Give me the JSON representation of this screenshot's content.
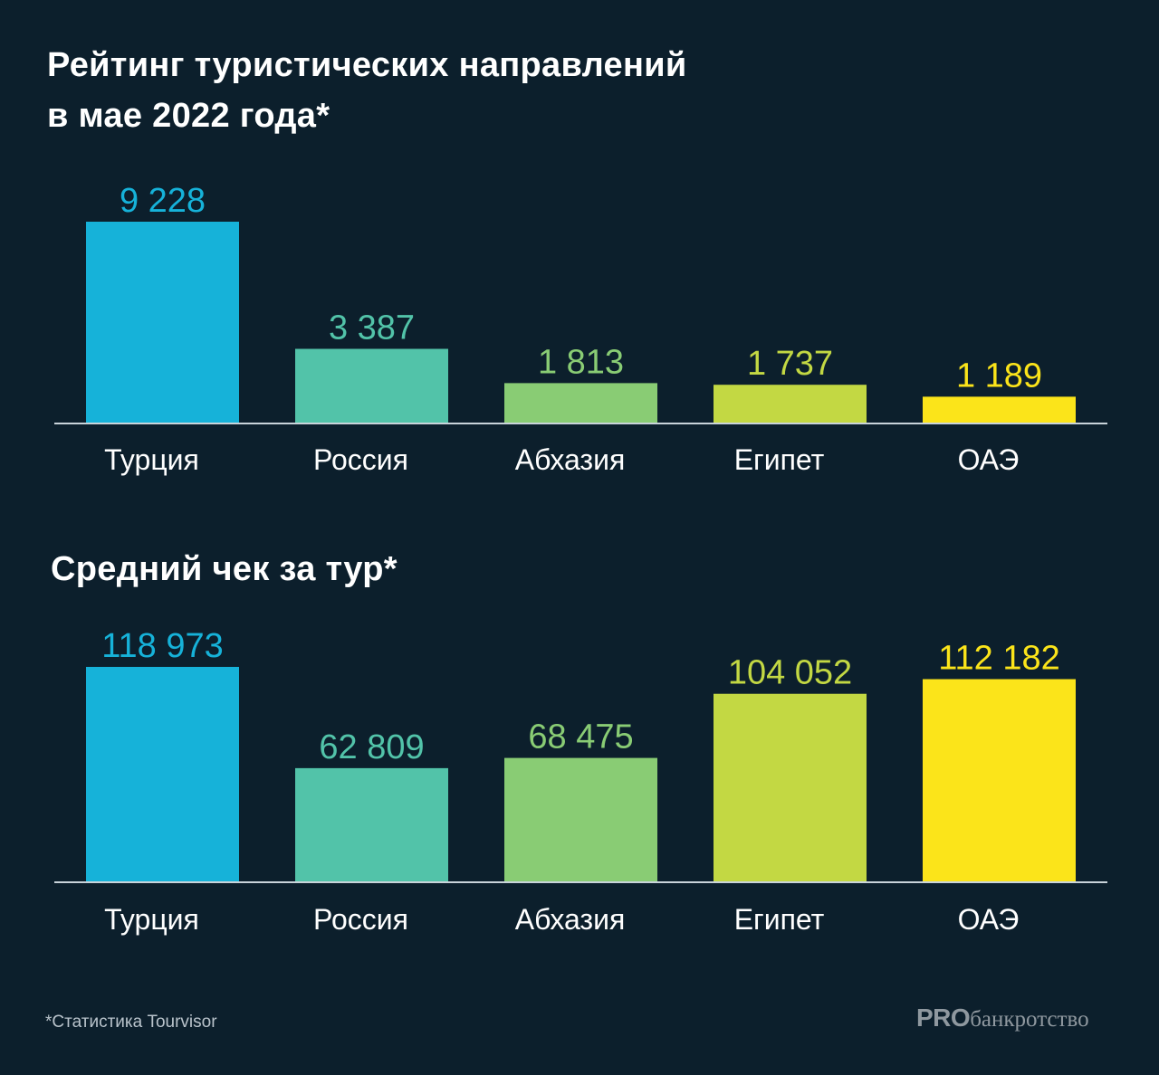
{
  "colors": {
    "background": "#0c1f2c",
    "axis": "#c9d3da",
    "series": [
      "#16b2d9",
      "#52c3a9",
      "#89cc74",
      "#c3d843",
      "#fbe41a"
    ]
  },
  "chart_data": [
    {
      "type": "bar",
      "title_lines": [
        "Рейтинг туристических направлений",
        "в мае 2022 года*"
      ],
      "categories": [
        "Турция",
        "Россия",
        "Абхазия",
        "Египет",
        "ОАЭ"
      ],
      "values": [
        9228,
        3387,
        1813,
        1737,
        1189
      ],
      "value_labels": [
        "9 228",
        "3 387",
        "1 813",
        "1 737",
        "1 189"
      ],
      "xlabel": "",
      "ylabel": "",
      "ylim": [
        0,
        9228
      ],
      "grid": false,
      "legend": "none"
    },
    {
      "type": "bar",
      "title_lines": [
        "Средний чек за тур*"
      ],
      "categories": [
        "Турция",
        "Россия",
        "Абхазия",
        "Египет",
        "ОАЭ"
      ],
      "values": [
        118973,
        62809,
        68475,
        104052,
        112182
      ],
      "value_labels": [
        "118 973",
        "62 809",
        "68 475",
        "104 052",
        "112 182"
      ],
      "xlabel": "",
      "ylabel": "",
      "ylim": [
        0,
        118973
      ],
      "grid": false,
      "legend": "none"
    }
  ],
  "footnote": "*Статистика Tourvisor",
  "logo": {
    "pro": "PRO",
    "rest": "банкротство"
  }
}
